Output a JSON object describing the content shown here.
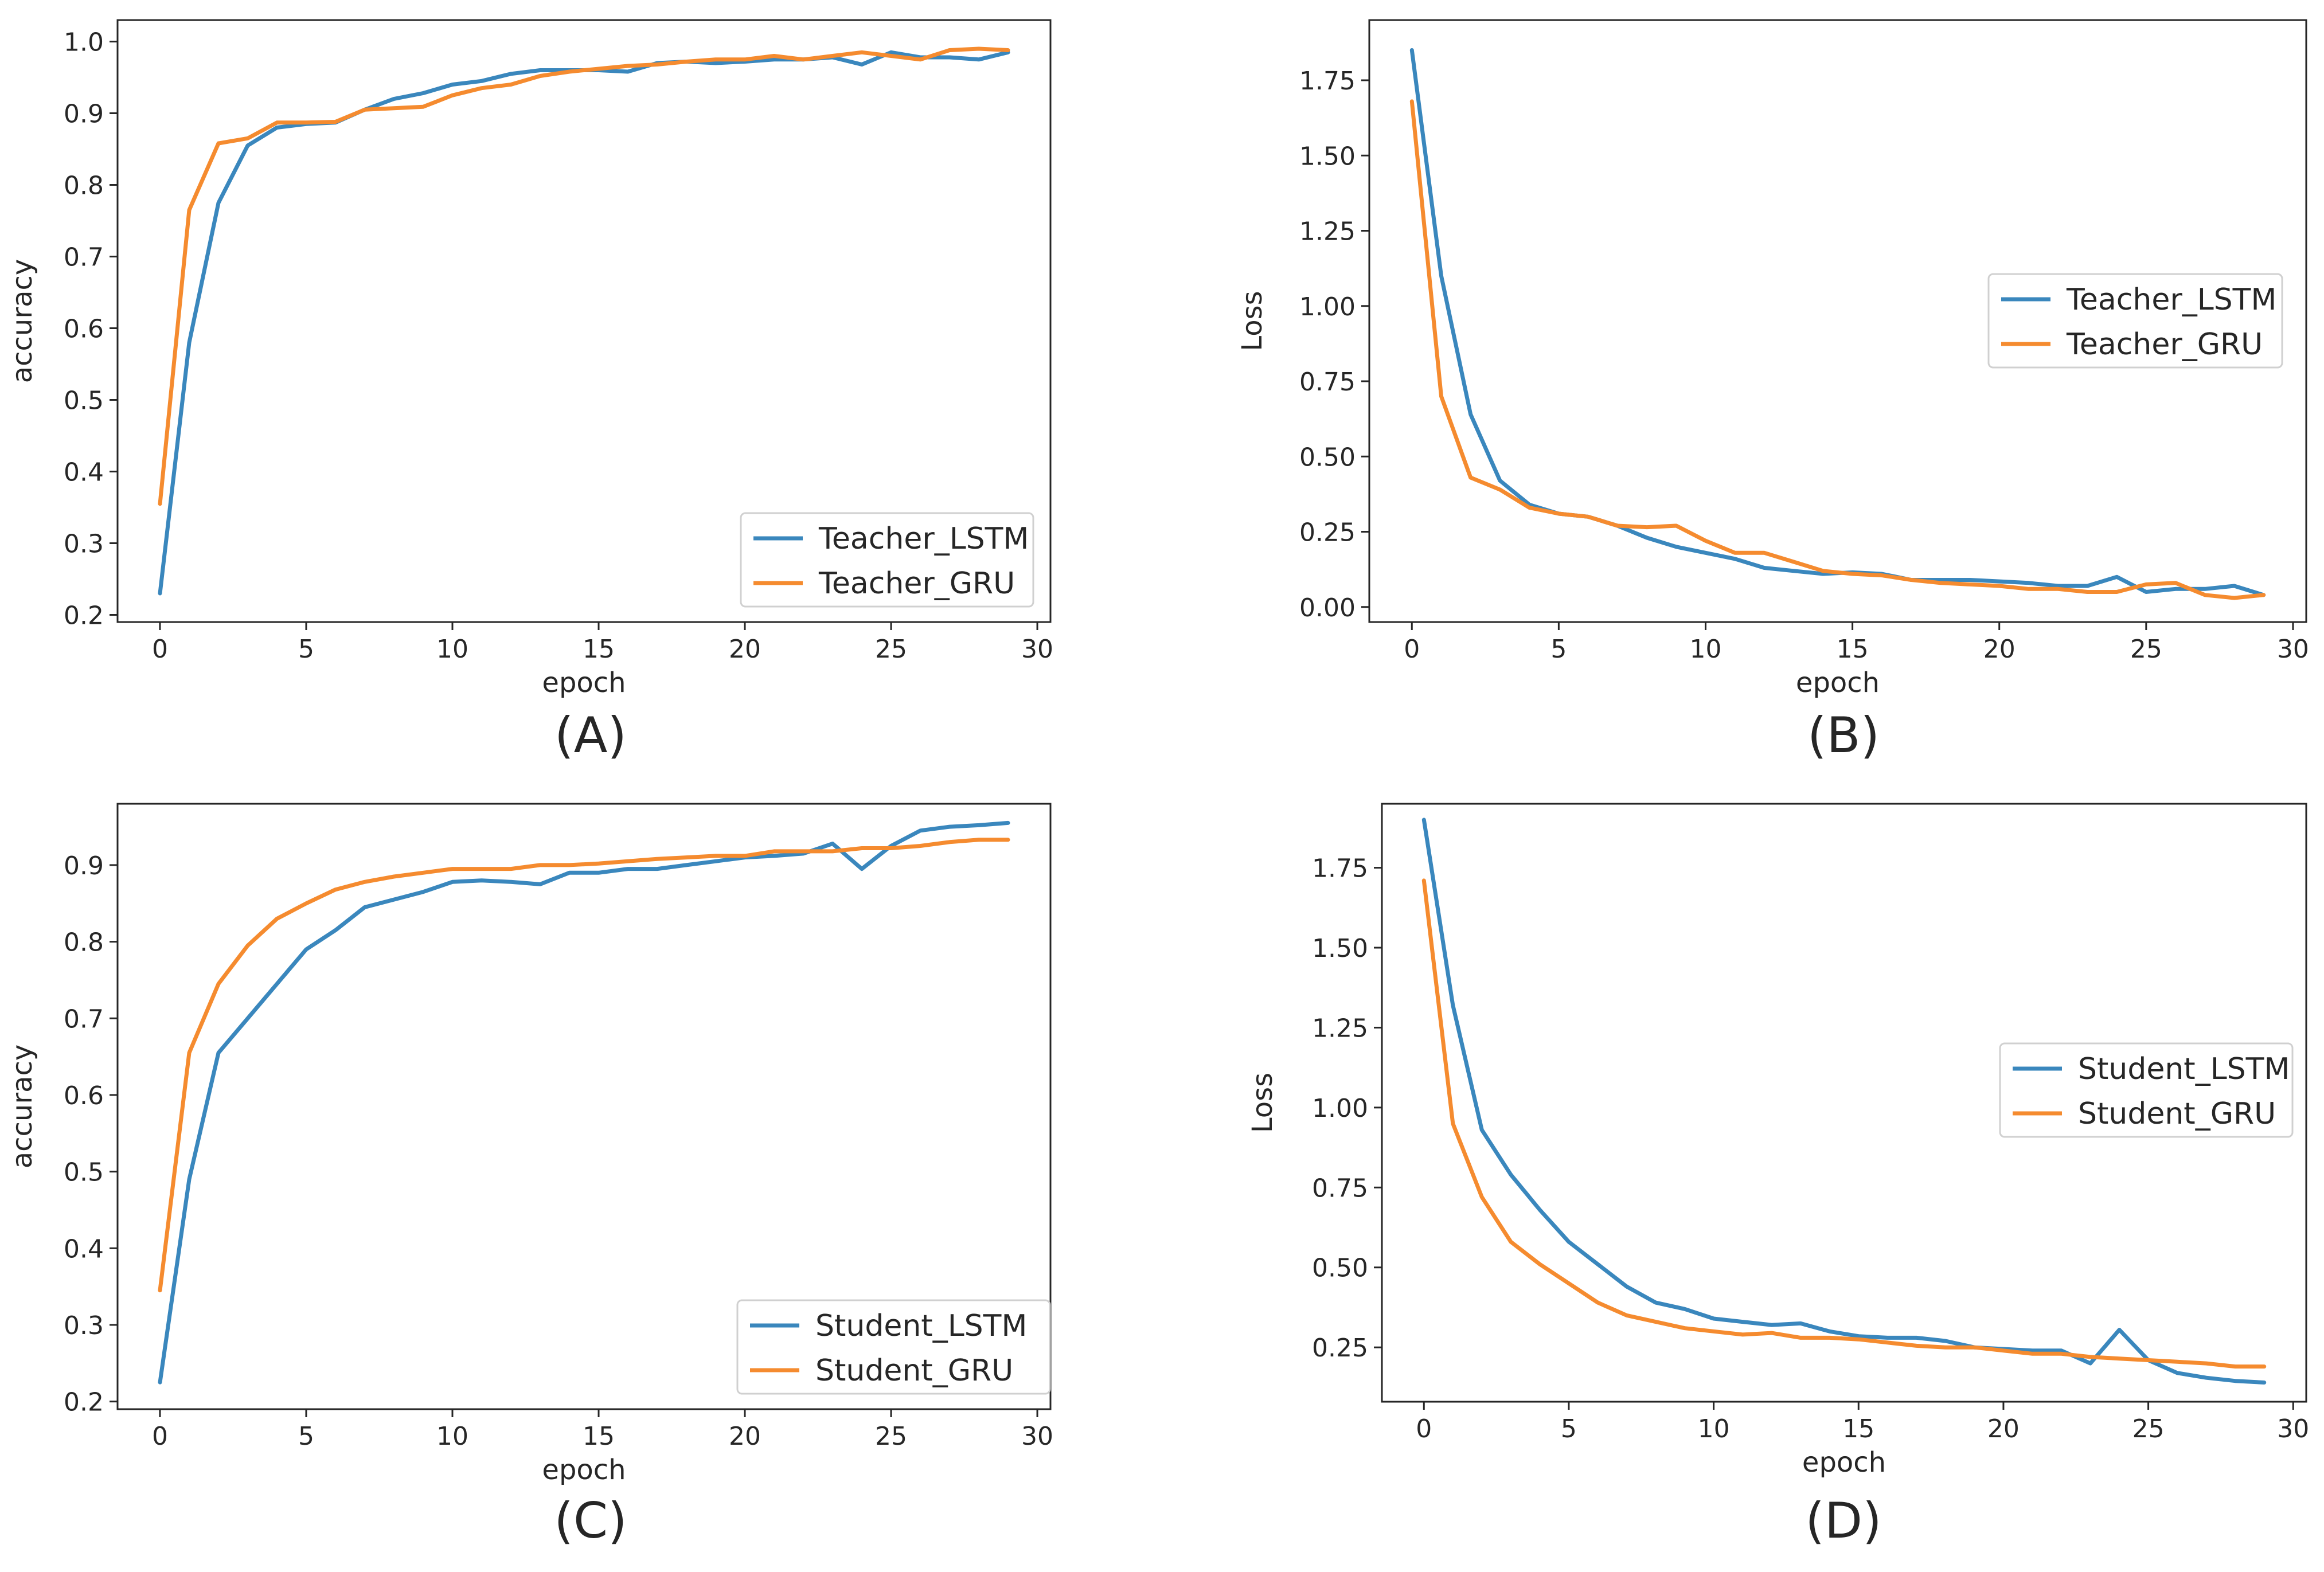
{
  "colors": {
    "series_1": "#3a87bd",
    "series_2": "#f58b2f",
    "axes": "#262626",
    "legend_border": "#d0d0d0"
  },
  "chart_data": [
    {
      "caption": "(A)",
      "type": "line",
      "xlabel": "epoch",
      "ylabel": "accuracy",
      "xlim": [
        -1.45,
        30.45
      ],
      "ylim": [
        0.19,
        1.03
      ],
      "xticks": [
        0,
        5,
        10,
        15,
        20,
        25,
        30
      ],
      "yticks": [
        0.2,
        0.3,
        0.4,
        0.5,
        0.6,
        0.7,
        0.8,
        0.9,
        1.0
      ],
      "yticklabels": [
        "0.2",
        "0.3",
        "0.4",
        "0.5",
        "0.6",
        "0.7",
        "0.8",
        "0.9",
        "1.0"
      ],
      "legend_position": "lower-right",
      "x": [
        0,
        1,
        2,
        3,
        4,
        5,
        6,
        7,
        8,
        9,
        10,
        11,
        12,
        13,
        14,
        15,
        16,
        17,
        18,
        19,
        20,
        21,
        22,
        23,
        24,
        25,
        26,
        27,
        28,
        29
      ],
      "series": [
        {
          "name": "Teacher_LSTM",
          "values": [
            0.23,
            0.58,
            0.775,
            0.855,
            0.88,
            0.885,
            0.887,
            0.905,
            0.92,
            0.928,
            0.94,
            0.945,
            0.955,
            0.96,
            0.96,
            0.96,
            0.958,
            0.97,
            0.972,
            0.97,
            0.972,
            0.975,
            0.975,
            0.978,
            0.968,
            0.985,
            0.978,
            0.978,
            0.975,
            0.985
          ]
        },
        {
          "name": "Teacher_GRU",
          "values": [
            0.355,
            0.765,
            0.858,
            0.865,
            0.887,
            0.887,
            0.888,
            0.905,
            0.907,
            0.909,
            0.925,
            0.935,
            0.94,
            0.952,
            0.958,
            0.962,
            0.966,
            0.968,
            0.972,
            0.975,
            0.975,
            0.98,
            0.975,
            0.98,
            0.985,
            0.98,
            0.975,
            0.988,
            0.99,
            0.988
          ]
        }
      ]
    },
    {
      "caption": "(B)",
      "type": "line",
      "xlabel": "epoch",
      "ylabel": "Loss",
      "xlim": [
        -1.45,
        30.45
      ],
      "ylim": [
        -0.05,
        1.95
      ],
      "xticks": [
        0,
        5,
        10,
        15,
        20,
        25,
        30
      ],
      "yticks": [
        0.0,
        0.25,
        0.5,
        0.75,
        1.0,
        1.25,
        1.5,
        1.75
      ],
      "yticklabels": [
        "0.00",
        "0.25",
        "0.50",
        "0.75",
        "1.00",
        "1.25",
        "1.50",
        "1.75"
      ],
      "legend_position": "center-right",
      "x": [
        0,
        1,
        2,
        3,
        4,
        5,
        6,
        7,
        8,
        9,
        10,
        11,
        12,
        13,
        14,
        15,
        16,
        17,
        18,
        19,
        20,
        21,
        22,
        23,
        24,
        25,
        26,
        27,
        28,
        29
      ],
      "series": [
        {
          "name": "Teacher_LSTM",
          "values": [
            1.85,
            1.1,
            0.64,
            0.42,
            0.34,
            0.31,
            0.3,
            0.27,
            0.23,
            0.2,
            0.18,
            0.16,
            0.13,
            0.12,
            0.11,
            0.115,
            0.11,
            0.09,
            0.09,
            0.09,
            0.085,
            0.08,
            0.07,
            0.07,
            0.1,
            0.05,
            0.06,
            0.06,
            0.07,
            0.04
          ]
        },
        {
          "name": "Teacher_GRU",
          "values": [
            1.68,
            0.7,
            0.43,
            0.39,
            0.33,
            0.31,
            0.3,
            0.27,
            0.265,
            0.27,
            0.22,
            0.18,
            0.18,
            0.15,
            0.12,
            0.11,
            0.105,
            0.09,
            0.08,
            0.075,
            0.07,
            0.06,
            0.06,
            0.05,
            0.05,
            0.075,
            0.08,
            0.04,
            0.03,
            0.04
          ]
        }
      ]
    },
    {
      "caption": "(C)",
      "type": "line",
      "xlabel": "epoch",
      "ylabel": "accuracy",
      "xlim": [
        -1.45,
        30.45
      ],
      "ylim": [
        0.19,
        0.98
      ],
      "xticks": [
        0,
        5,
        10,
        15,
        20,
        25,
        30
      ],
      "yticks": [
        0.2,
        0.3,
        0.4,
        0.5,
        0.6,
        0.7,
        0.8,
        0.9
      ],
      "yticklabels": [
        "0.2",
        "0.3",
        "0.4",
        "0.5",
        "0.6",
        "0.7",
        "0.8",
        "0.9"
      ],
      "legend_position": "lower-right",
      "x": [
        0,
        1,
        2,
        3,
        4,
        5,
        6,
        7,
        8,
        9,
        10,
        11,
        12,
        13,
        14,
        15,
        16,
        17,
        18,
        19,
        20,
        21,
        22,
        23,
        24,
        25,
        26,
        27,
        28,
        29
      ],
      "series": [
        {
          "name": "Student_LSTM",
          "values": [
            0.225,
            0.49,
            0.655,
            0.7,
            0.745,
            0.79,
            0.815,
            0.845,
            0.855,
            0.865,
            0.878,
            0.88,
            0.878,
            0.875,
            0.89,
            0.89,
            0.895,
            0.895,
            0.9,
            0.905,
            0.91,
            0.912,
            0.915,
            0.928,
            0.895,
            0.925,
            0.945,
            0.95,
            0.952,
            0.955
          ]
        },
        {
          "name": "Student_GRU",
          "values": [
            0.345,
            0.655,
            0.745,
            0.795,
            0.83,
            0.85,
            0.868,
            0.878,
            0.885,
            0.89,
            0.895,
            0.895,
            0.895,
            0.9,
            0.9,
            0.902,
            0.905,
            0.908,
            0.91,
            0.912,
            0.912,
            0.918,
            0.918,
            0.918,
            0.922,
            0.922,
            0.925,
            0.93,
            0.933,
            0.933
          ]
        }
      ]
    },
    {
      "caption": "(D)",
      "type": "line",
      "xlabel": "epoch",
      "ylabel": "Loss",
      "xlim": [
        -1.45,
        30.45
      ],
      "ylim": [
        0.08,
        1.95
      ],
      "xticks": [
        0,
        5,
        10,
        15,
        20,
        25,
        30
      ],
      "yticks": [
        0.25,
        0.5,
        0.75,
        1.0,
        1.25,
        1.5,
        1.75
      ],
      "yticklabels": [
        "0.25",
        "0.50",
        "0.75",
        "1.00",
        "1.25",
        "1.50",
        "1.75"
      ],
      "legend_position": "center-right",
      "x": [
        0,
        1,
        2,
        3,
        4,
        5,
        6,
        7,
        8,
        9,
        10,
        11,
        12,
        13,
        14,
        15,
        16,
        17,
        18,
        19,
        20,
        21,
        22,
        23,
        24,
        25,
        26,
        27,
        28,
        29
      ],
      "series": [
        {
          "name": "Student_LSTM",
          "values": [
            1.9,
            1.32,
            0.93,
            0.79,
            0.68,
            0.58,
            0.51,
            0.44,
            0.39,
            0.37,
            0.34,
            0.33,
            0.32,
            0.325,
            0.3,
            0.285,
            0.28,
            0.28,
            0.27,
            0.25,
            0.245,
            0.24,
            0.24,
            0.2,
            0.305,
            0.21,
            0.17,
            0.155,
            0.145,
            0.14
          ]
        },
        {
          "name": "Student_GRU",
          "values": [
            1.71,
            0.95,
            0.72,
            0.58,
            0.51,
            0.45,
            0.39,
            0.35,
            0.33,
            0.31,
            0.3,
            0.29,
            0.295,
            0.28,
            0.28,
            0.275,
            0.265,
            0.255,
            0.25,
            0.25,
            0.24,
            0.23,
            0.23,
            0.22,
            0.215,
            0.21,
            0.205,
            0.2,
            0.19,
            0.19
          ]
        }
      ]
    }
  ]
}
